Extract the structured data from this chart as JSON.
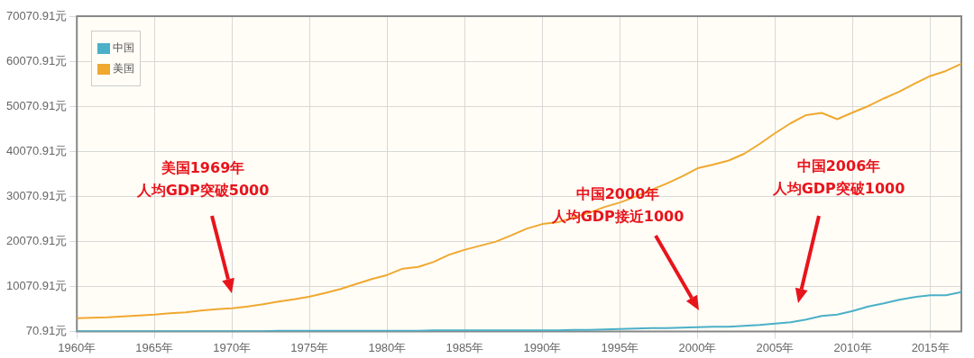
{
  "chart_data": {
    "type": "line",
    "x": [
      1960,
      1961,
      1962,
      1963,
      1964,
      1965,
      1966,
      1967,
      1968,
      1969,
      1970,
      1971,
      1972,
      1973,
      1974,
      1975,
      1976,
      1977,
      1978,
      1979,
      1980,
      1981,
      1982,
      1983,
      1984,
      1985,
      1986,
      1987,
      1988,
      1989,
      1990,
      1991,
      1992,
      1993,
      1994,
      1995,
      1996,
      1997,
      1998,
      1999,
      2000,
      2001,
      2002,
      2003,
      2004,
      2005,
      2006,
      2007,
      2008,
      2009,
      2010,
      2011,
      2012,
      2013,
      2014,
      2015,
      2016,
      2017
    ],
    "series": [
      {
        "name": "中国",
        "color": "#4bb0c8",
        "values": [
          100,
          100,
          100,
          100,
          100,
          100,
          100,
          100,
          100,
          100,
          100,
          100,
          100,
          200,
          200,
          200,
          200,
          200,
          200,
          200,
          200,
          200,
          200,
          300,
          300,
          300,
          300,
          300,
          300,
          300,
          300,
          300,
          400,
          400,
          500,
          600,
          700,
          800,
          800,
          900,
          1000,
          1100,
          1100,
          1300,
          1500,
          1800,
          2100,
          2700,
          3500,
          3800,
          4600,
          5600,
          6300,
          7100,
          7700,
          8100,
          8100,
          8800
        ]
      },
      {
        "name": "美国",
        "color": "#f0a830",
        "values": [
          3000,
          3100,
          3200,
          3400,
          3600,
          3800,
          4100,
          4300,
          4700,
          5000,
          5200,
          5600,
          6100,
          6700,
          7200,
          7800,
          8600,
          9500,
          10600,
          11700,
          12600,
          14000,
          14400,
          15500,
          17100,
          18200,
          19100,
          20000,
          21400,
          22900,
          23900,
          24300,
          25400,
          26400,
          27700,
          28700,
          30000,
          31500,
          32900,
          34500,
          36300,
          37100,
          38000,
          39500,
          41700,
          44100,
          46300,
          48100,
          48600,
          47200,
          48700,
          50100,
          51800,
          53300,
          55100,
          56800,
          57900,
          59500
        ]
      }
    ],
    "xlim": [
      1960,
      2017
    ],
    "xticks": [
      {
        "value": 1960,
        "label": "1960年"
      },
      {
        "value": 1965,
        "label": "1965年"
      },
      {
        "value": 1970,
        "label": "1970年"
      },
      {
        "value": 1975,
        "label": "1975年"
      },
      {
        "value": 1980,
        "label": "1980年"
      },
      {
        "value": 1985,
        "label": "1985年"
      },
      {
        "value": 1990,
        "label": "1990年"
      },
      {
        "value": 1995,
        "label": "1995年"
      },
      {
        "value": 2000,
        "label": "2000年"
      },
      {
        "value": 2005,
        "label": "2005年"
      },
      {
        "value": 2010,
        "label": "2010年"
      },
      {
        "value": 2015,
        "label": "2015年"
      }
    ],
    "ylim": [
      70.91,
      70070.91
    ],
    "yticks": [
      {
        "value": 70.91,
        "label": "70.91元"
      },
      {
        "value": 10070.91,
        "label": "10070.91元"
      },
      {
        "value": 20070.91,
        "label": "20070.91元"
      },
      {
        "value": 30070.91,
        "label": "30070.91元"
      },
      {
        "value": 40070.91,
        "label": "40070.91元"
      },
      {
        "value": 50070.91,
        "label": "50070.91元"
      },
      {
        "value": 60070.91,
        "label": "60070.91元"
      },
      {
        "value": 70070.91,
        "label": "70070.91元"
      }
    ],
    "grid": true,
    "legend": "top left",
    "marker": "none",
    "line_style": "solid",
    "annotations": [
      "美国1969年",
      "人均GDP突破5000",
      "中国2000年",
      "人均GDP接近1000",
      "中国2006年",
      "人均GDP突破1000"
    ]
  }
}
